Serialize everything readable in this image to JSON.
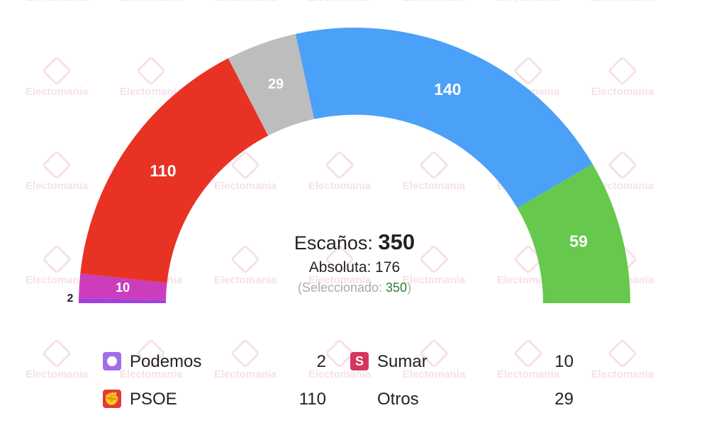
{
  "watermark": {
    "text": "Electomania"
  },
  "center": {
    "seats_label": "Escaños:",
    "seats_total": "350",
    "majority_label": "Absoluta: 176",
    "selected_open": "(Seleccionado: ",
    "selected_value": "350",
    "selected_close": ")"
  },
  "chart_data": {
    "type": "pie",
    "subtype": "hemicycle",
    "total": 350,
    "majority": 176,
    "series": [
      {
        "name": "Podemos",
        "value": 2,
        "color": "#a040e0"
      },
      {
        "name": "Sumar",
        "value": 10,
        "color": "#cc3dbb"
      },
      {
        "name": "PSOE",
        "value": 110,
        "color": "#e83223"
      },
      {
        "name": "Otros",
        "value": 29,
        "color": "#bdbdbd"
      },
      {
        "name": "",
        "value": 140,
        "color": "#4ba0f7"
      },
      {
        "name": "",
        "value": 59,
        "color": "#66c94d"
      }
    ]
  },
  "legend": {
    "items": [
      {
        "name": "Podemos",
        "value": "2",
        "icon": "podemos-circle-icon",
        "color": "#a26de8"
      },
      {
        "name": "Sumar",
        "value": "10",
        "icon": "sumar-s-icon",
        "color": "#d6355d"
      },
      {
        "name": "PSOE",
        "value": "110",
        "icon": "psoe-fist-rose-icon",
        "color": "#e53935"
      },
      {
        "name": "Otros",
        "value": "29",
        "icon": "",
        "color": ""
      }
    ]
  }
}
